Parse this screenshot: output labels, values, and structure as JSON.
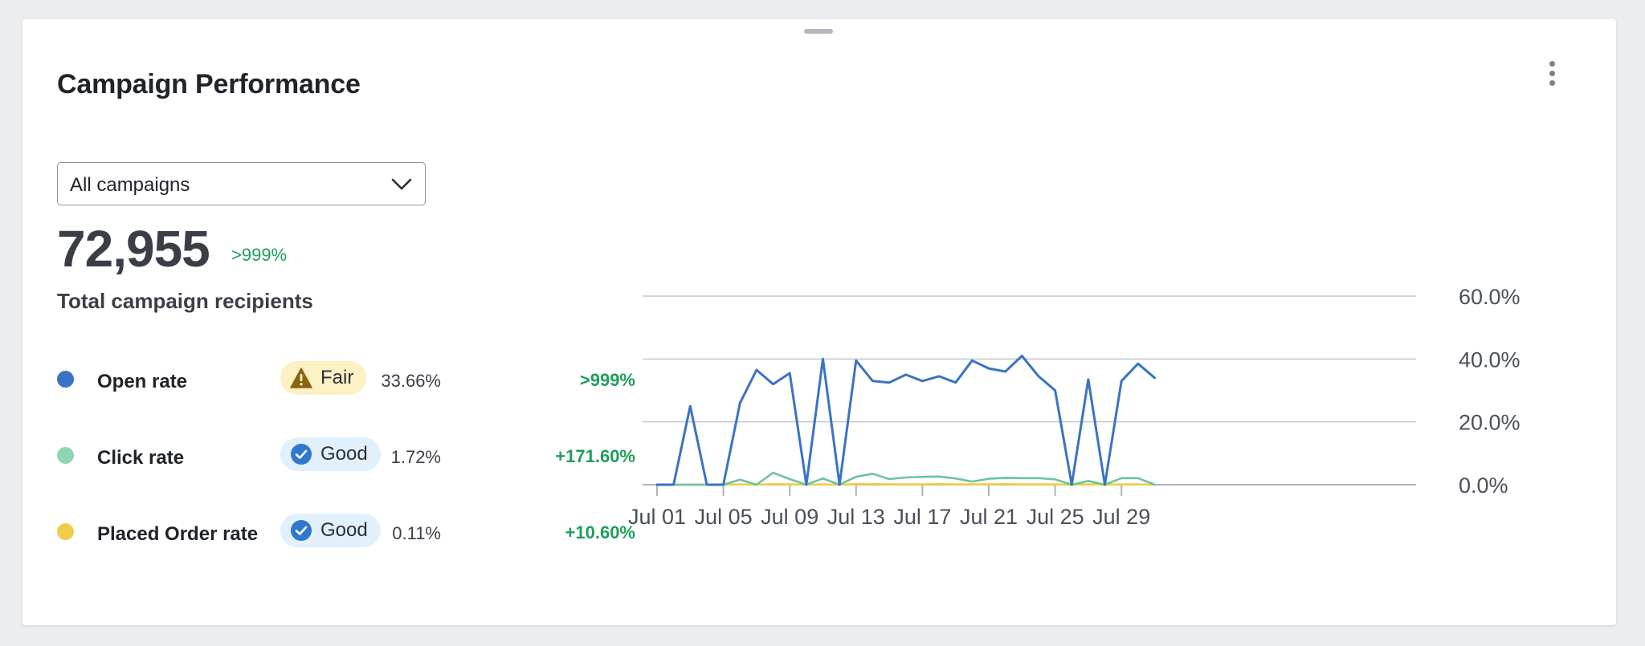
{
  "card": {
    "title": "Campaign Performance",
    "menu_icon": "kebab-vertical-icon"
  },
  "filter": {
    "selected": "All campaigns",
    "icon": "chevron-down-icon"
  },
  "summary": {
    "value": "72,955",
    "change": ">999%",
    "label": "Total campaign recipients"
  },
  "metrics": [
    {
      "name": "Open rate",
      "color": "#3a73c3",
      "badge": "Fair",
      "badge_icon": "warning-icon",
      "value": "33.66%",
      "change": ">999%"
    },
    {
      "name": "Click rate",
      "color": "#8fd6b8",
      "badge": "Good",
      "badge_icon": "check-circle-icon",
      "value": "1.72%",
      "change": "+171.60%"
    },
    {
      "name": "Placed Order rate",
      "color": "#f0cc4a",
      "badge": "Good",
      "badge_icon": "check-circle-icon",
      "value": "0.11%",
      "change": "+10.60%"
    }
  ],
  "chart_data": {
    "type": "line",
    "x": [
      "Jul 01",
      "Jul 02",
      "Jul 03",
      "Jul 04",
      "Jul 05",
      "Jul 06",
      "Jul 07",
      "Jul 08",
      "Jul 09",
      "Jul 10",
      "Jul 11",
      "Jul 12",
      "Jul 13",
      "Jul 14",
      "Jul 15",
      "Jul 16",
      "Jul 17",
      "Jul 18",
      "Jul 19",
      "Jul 20",
      "Jul 21",
      "Jul 22",
      "Jul 23",
      "Jul 24",
      "Jul 25",
      "Jul 26",
      "Jul 27",
      "Jul 28",
      "Jul 29",
      "Jul 30",
      "Jul 31"
    ],
    "x_tick_labels": [
      "Jul 01",
      "Jul 05",
      "Jul 09",
      "Jul 13",
      "Jul 17",
      "Jul 21",
      "Jul 25",
      "Jul 29"
    ],
    "y_tick_labels": [
      "60.0%",
      "40.0%",
      "20.0%",
      "0.0%"
    ],
    "ylim": [
      0,
      60
    ],
    "y_axis_side": "right",
    "grid": true,
    "series": [
      {
        "name": "Open rate",
        "color": "#3a73c3",
        "values": [
          0,
          0,
          25,
          0,
          0,
          26,
          36.5,
          32,
          35.5,
          0,
          40,
          0,
          39.5,
          33,
          32.5,
          35,
          33,
          34.5,
          32.5,
          39.5,
          37,
          36,
          41,
          34.5,
          30,
          0,
          33.5,
          0,
          33,
          38.5,
          34
        ]
      },
      {
        "name": "Click rate",
        "color": "#6cc49c",
        "values": [
          0,
          0,
          0,
          0,
          0,
          1.6,
          0,
          3.8,
          1.8,
          0,
          2,
          0,
          2.5,
          3.5,
          1.8,
          2.3,
          2.5,
          2.6,
          2,
          1,
          1.9,
          2.2,
          2.1,
          2.1,
          1.7,
          0,
          1.2,
          0,
          2.1,
          2.1,
          0
        ]
      },
      {
        "name": "Placed Order rate",
        "color": "#f0cc4a",
        "values": [
          0,
          0,
          0,
          0,
          0,
          0.1,
          0,
          0.2,
          0.1,
          0,
          0.1,
          0,
          0.2,
          0.2,
          0.1,
          0.1,
          0.1,
          0.2,
          0.1,
          0.1,
          0.1,
          0.2,
          0.1,
          0.1,
          0.1,
          0,
          0.1,
          0,
          0.1,
          0.1,
          0
        ]
      }
    ]
  }
}
